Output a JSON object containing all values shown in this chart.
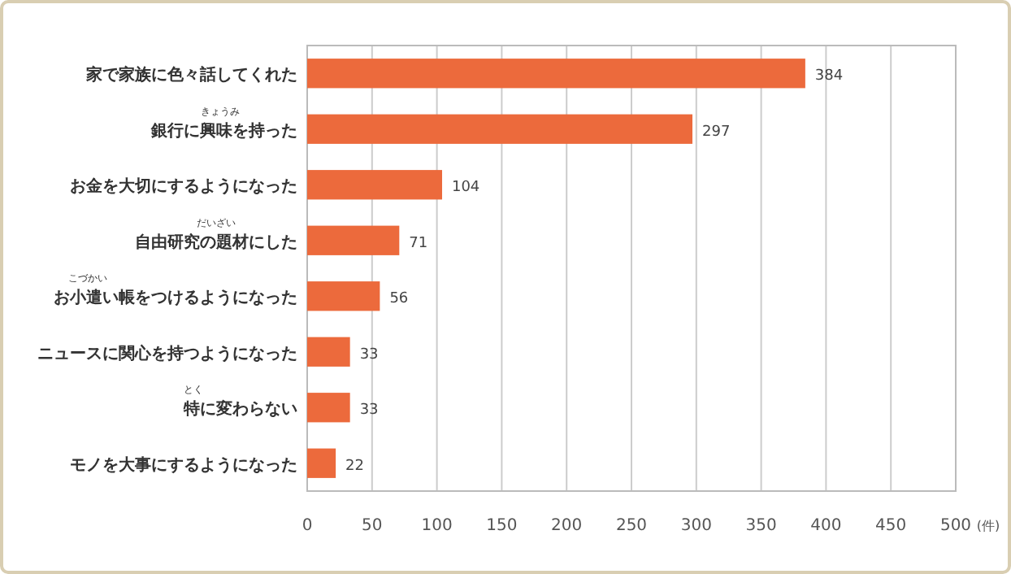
{
  "chart_data": {
    "type": "bar",
    "orientation": "horizontal",
    "categories": [
      "家で家族に色々話してくれた",
      "銀行に興味を持った",
      "お金を大切にするようになった",
      "自由研究の題材にした",
      "お小遣い帳をつけるようになった",
      "ニュースに関心を持つようになった",
      "特に変わらない",
      "モノを大事にするようになった"
    ],
    "values": [
      384,
      297,
      104,
      71,
      56,
      33,
      33,
      22
    ],
    "color": "#ec6a3c",
    "xlim": [
      0,
      500
    ],
    "xticks": [
      0,
      50,
      100,
      150,
      200,
      250,
      300,
      350,
      400,
      450,
      500
    ],
    "xlabel": "(件)",
    "grid": "x",
    "data_labels": true,
    "annotations": [
      "きょうみ",
      "だいざい",
      "こづかい",
      "とく"
    ]
  }
}
